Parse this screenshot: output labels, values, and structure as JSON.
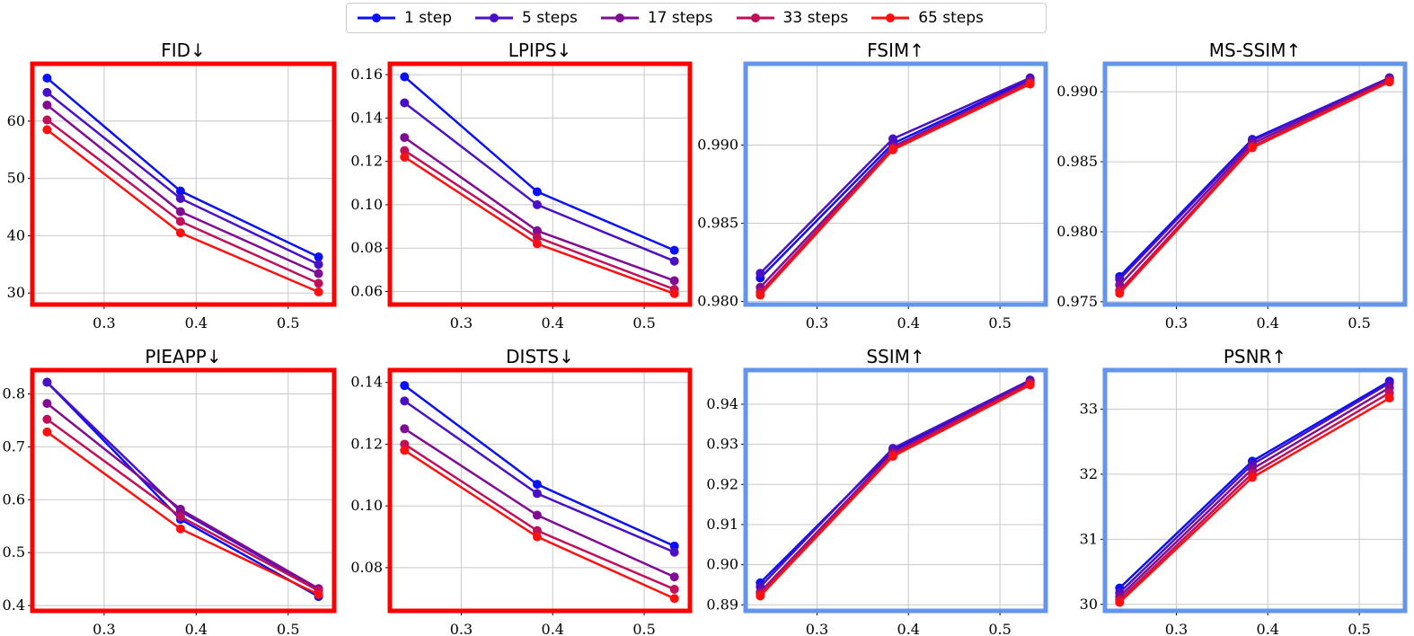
{
  "legend": {
    "entries": [
      {
        "label": "1 step",
        "color": "#0a10f5"
      },
      {
        "label": "5 steps",
        "color": "#4a10c6"
      },
      {
        "label": "17 steps",
        "color": "#7f0c92"
      },
      {
        "label": "33 steps",
        "color": "#c0105a"
      },
      {
        "label": "65 steps",
        "color": "#ff1010"
      }
    ]
  },
  "frame_colors": {
    "lower_is_better": "#ff0000",
    "higher_is_better": "#6495ed"
  },
  "chart_data": [
    {
      "type": "line",
      "title": "FID↓",
      "frame": "lower_is_better",
      "x": [
        0.238,
        0.383,
        0.533
      ],
      "xticks": [
        0.3,
        0.4,
        0.5
      ],
      "xtick_labels": [
        "0.3",
        "0.4",
        "0.5"
      ],
      "xlim": [
        0.222,
        0.55
      ],
      "yticks": [
        30,
        40,
        50,
        60
      ],
      "ytick_labels": [
        "30",
        "40",
        "50",
        "60"
      ],
      "ylim": [
        28,
        70
      ],
      "series": [
        {
          "name": "1 step",
          "values": [
            67.5,
            47.8,
            36.3
          ]
        },
        {
          "name": "5 steps",
          "values": [
            65.0,
            46.5,
            35.0
          ]
        },
        {
          "name": "17 steps",
          "values": [
            62.8,
            44.2,
            33.4
          ]
        },
        {
          "name": "33 steps",
          "values": [
            60.2,
            42.5,
            31.7
          ]
        },
        {
          "name": "65 steps",
          "values": [
            58.5,
            40.5,
            30.2
          ]
        }
      ]
    },
    {
      "type": "line",
      "title": "LPIPS↓",
      "frame": "lower_is_better",
      "x": [
        0.238,
        0.383,
        0.533
      ],
      "xticks": [
        0.3,
        0.4,
        0.5
      ],
      "xtick_labels": [
        "0.3",
        "0.4",
        "0.5"
      ],
      "xlim": [
        0.222,
        0.55
      ],
      "yticks": [
        0.06,
        0.08,
        0.1,
        0.12,
        0.14,
        0.16
      ],
      "ytick_labels": [
        "0.06",
        "0.08",
        "0.10",
        "0.12",
        "0.14",
        "0.16"
      ],
      "ylim": [
        0.054,
        0.165
      ],
      "series": [
        {
          "name": "1 step",
          "values": [
            0.159,
            0.106,
            0.079
          ]
        },
        {
          "name": "5 steps",
          "values": [
            0.147,
            0.1,
            0.074
          ]
        },
        {
          "name": "17 steps",
          "values": [
            0.131,
            0.088,
            0.065
          ]
        },
        {
          "name": "33 steps",
          "values": [
            0.125,
            0.085,
            0.061
          ]
        },
        {
          "name": "65 steps",
          "values": [
            0.122,
            0.082,
            0.059
          ]
        }
      ]
    },
    {
      "type": "line",
      "title": "FSIM↑",
      "frame": "higher_is_better",
      "x": [
        0.238,
        0.383,
        0.533
      ],
      "xticks": [
        0.3,
        0.4,
        0.5
      ],
      "xtick_labels": [
        "0.3",
        "0.4",
        "0.5"
      ],
      "xlim": [
        0.222,
        0.55
      ],
      "yticks": [
        0.98,
        0.985,
        0.99
      ],
      "ytick_labels": [
        "0.980",
        "0.985",
        "0.990"
      ],
      "ylim": [
        0.9798,
        0.9952
      ],
      "series": [
        {
          "name": "1 step",
          "values": [
            0.9815,
            0.9901,
            0.9942
          ]
        },
        {
          "name": "5 steps",
          "values": [
            0.9818,
            0.9904,
            0.9943
          ]
        },
        {
          "name": "17 steps",
          "values": [
            0.9809,
            0.9899,
            0.9941
          ]
        },
        {
          "name": "33 steps",
          "values": [
            0.9806,
            0.9898,
            0.994
          ]
        },
        {
          "name": "65 steps",
          "values": [
            0.9804,
            0.9897,
            0.9939
          ]
        }
      ]
    },
    {
      "type": "line",
      "title": "MS-SSIM↑",
      "frame": "higher_is_better",
      "x": [
        0.238,
        0.383,
        0.533
      ],
      "xticks": [
        0.3,
        0.4,
        0.5
      ],
      "xtick_labels": [
        "0.3",
        "0.4",
        "0.5"
      ],
      "xlim": [
        0.222,
        0.55
      ],
      "yticks": [
        0.975,
        0.98,
        0.985,
        0.99
      ],
      "ytick_labels": [
        "0.975",
        "0.980",
        "0.985",
        "0.990"
      ],
      "ylim": [
        0.9748,
        0.992
      ],
      "series": [
        {
          "name": "1 step",
          "values": [
            0.9768,
            0.9866,
            0.991
          ]
        },
        {
          "name": "5 steps",
          "values": [
            0.9766,
            0.9865,
            0.991
          ]
        },
        {
          "name": "17 steps",
          "values": [
            0.9762,
            0.9863,
            0.9909
          ]
        },
        {
          "name": "33 steps",
          "values": [
            0.9758,
            0.9861,
            0.9908
          ]
        },
        {
          "name": "65 steps",
          "values": [
            0.9756,
            0.986,
            0.9907
          ]
        }
      ]
    },
    {
      "type": "line",
      "title": "PIEAPP↓",
      "frame": "lower_is_better",
      "x": [
        0.238,
        0.383,
        0.533
      ],
      "xticks": [
        0.3,
        0.4,
        0.5
      ],
      "xtick_labels": [
        "0.3",
        "0.4",
        "0.5"
      ],
      "xlim": [
        0.222,
        0.55
      ],
      "yticks": [
        0.4,
        0.5,
        0.6,
        0.7,
        0.8
      ],
      "ytick_labels": [
        "0.4",
        "0.5",
        "0.6",
        "0.7",
        "0.8"
      ],
      "ylim": [
        0.39,
        0.845
      ],
      "series": [
        {
          "name": "1 step",
          "values": [
            0.822,
            0.563,
            0.417
          ]
        },
        {
          "name": "5 steps",
          "values": [
            0.822,
            0.578,
            0.43
          ]
        },
        {
          "name": "17 steps",
          "values": [
            0.782,
            0.582,
            0.432
          ]
        },
        {
          "name": "33 steps",
          "values": [
            0.752,
            0.568,
            0.428
          ]
        },
        {
          "name": "65 steps",
          "values": [
            0.728,
            0.545,
            0.421
          ]
        }
      ]
    },
    {
      "type": "line",
      "title": "DISTS↓",
      "frame": "lower_is_better",
      "x": [
        0.238,
        0.383,
        0.533
      ],
      "xticks": [
        0.3,
        0.4,
        0.5
      ],
      "xtick_labels": [
        "0.3",
        "0.4",
        "0.5"
      ],
      "xlim": [
        0.222,
        0.55
      ],
      "yticks": [
        0.08,
        0.1,
        0.12,
        0.14
      ],
      "ytick_labels": [
        "0.08",
        "0.10",
        "0.12",
        "0.14"
      ],
      "ylim": [
        0.066,
        0.144
      ],
      "series": [
        {
          "name": "1 step",
          "values": [
            0.139,
            0.107,
            0.087
          ]
        },
        {
          "name": "5 steps",
          "values": [
            0.134,
            0.104,
            0.085
          ]
        },
        {
          "name": "17 steps",
          "values": [
            0.125,
            0.097,
            0.077
          ]
        },
        {
          "name": "33 steps",
          "values": [
            0.12,
            0.092,
            0.073
          ]
        },
        {
          "name": "65 steps",
          "values": [
            0.118,
            0.09,
            0.07
          ]
        }
      ]
    },
    {
      "type": "line",
      "title": "SSIM↑",
      "frame": "higher_is_better",
      "x": [
        0.238,
        0.383,
        0.533
      ],
      "xticks": [
        0.3,
        0.4,
        0.5
      ],
      "xtick_labels": [
        "0.3",
        "0.4",
        "0.5"
      ],
      "xlim": [
        0.222,
        0.55
      ],
      "yticks": [
        0.89,
        0.9,
        0.91,
        0.92,
        0.93,
        0.94
      ],
      "ytick_labels": [
        "0.89",
        "0.90",
        "0.91",
        "0.92",
        "0.93",
        "0.94"
      ],
      "ylim": [
        0.8885,
        0.9485
      ],
      "series": [
        {
          "name": "1 step",
          "values": [
            0.8955,
            0.9285,
            0.9458
          ]
        },
        {
          "name": "5 steps",
          "values": [
            0.8945,
            0.929,
            0.946
          ]
        },
        {
          "name": "17 steps",
          "values": [
            0.8932,
            0.928,
            0.9455
          ]
        },
        {
          "name": "33 steps",
          "values": [
            0.8928,
            0.9275,
            0.9452
          ]
        },
        {
          "name": "65 steps",
          "values": [
            0.8922,
            0.927,
            0.9448
          ]
        }
      ]
    },
    {
      "type": "line",
      "title": "PSNR↑",
      "frame": "higher_is_better",
      "x": [
        0.238,
        0.383,
        0.533
      ],
      "xticks": [
        0.3,
        0.4,
        0.5
      ],
      "xtick_labels": [
        "0.3",
        "0.4",
        "0.5"
      ],
      "xlim": [
        0.222,
        0.55
      ],
      "yticks": [
        30,
        31,
        32,
        33
      ],
      "ytick_labels": [
        "30",
        "31",
        "32",
        "33"
      ],
      "ylim": [
        29.9,
        33.6
      ],
      "series": [
        {
          "name": "1 step",
          "values": [
            30.25,
            32.2,
            33.43
          ]
        },
        {
          "name": "5 steps",
          "values": [
            30.18,
            32.15,
            33.4
          ]
        },
        {
          "name": "17 steps",
          "values": [
            30.12,
            32.08,
            33.33
          ]
        },
        {
          "name": "33 steps",
          "values": [
            30.07,
            32.01,
            33.25
          ]
        },
        {
          "name": "65 steps",
          "values": [
            30.03,
            31.95,
            33.17
          ]
        }
      ]
    }
  ]
}
